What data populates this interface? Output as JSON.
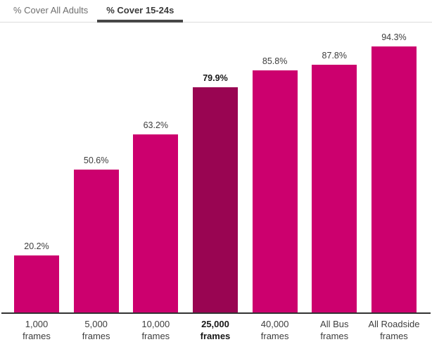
{
  "tabs": [
    {
      "label": "% Cover All Adults",
      "active": false
    },
    {
      "label": "% Cover 15-24s",
      "active": true
    }
  ],
  "chart_data": {
    "type": "bar",
    "title": "",
    "xlabel": "",
    "ylabel": "",
    "categories": [
      "1,000\nframes",
      "5,000\nframes",
      "10,000\nframes",
      "25,000\nframes",
      "40,000\nframes",
      "All Bus\nframes",
      "All Roadside\nframes"
    ],
    "values": [
      20.2,
      50.6,
      63.2,
      79.9,
      85.8,
      87.8,
      94.3
    ],
    "value_labels": [
      "20.2%",
      "50.6%",
      "63.2%",
      "79.9%",
      "85.8%",
      "87.8%",
      "94.3%"
    ],
    "highlighted_index": 3,
    "highlighted_category": "25,000 frames",
    "ylim": [
      0,
      100
    ],
    "grid": false,
    "legend": "none",
    "colors": {
      "bar": "#cc006e",
      "highlighted_bar": "#990552",
      "axis": "#333333",
      "value_label": "#3d3d3d",
      "highlighted_label": "#161616",
      "tab_active_underline": "#474747",
      "tab_inactive_text": "#6f6f6f"
    }
  }
}
